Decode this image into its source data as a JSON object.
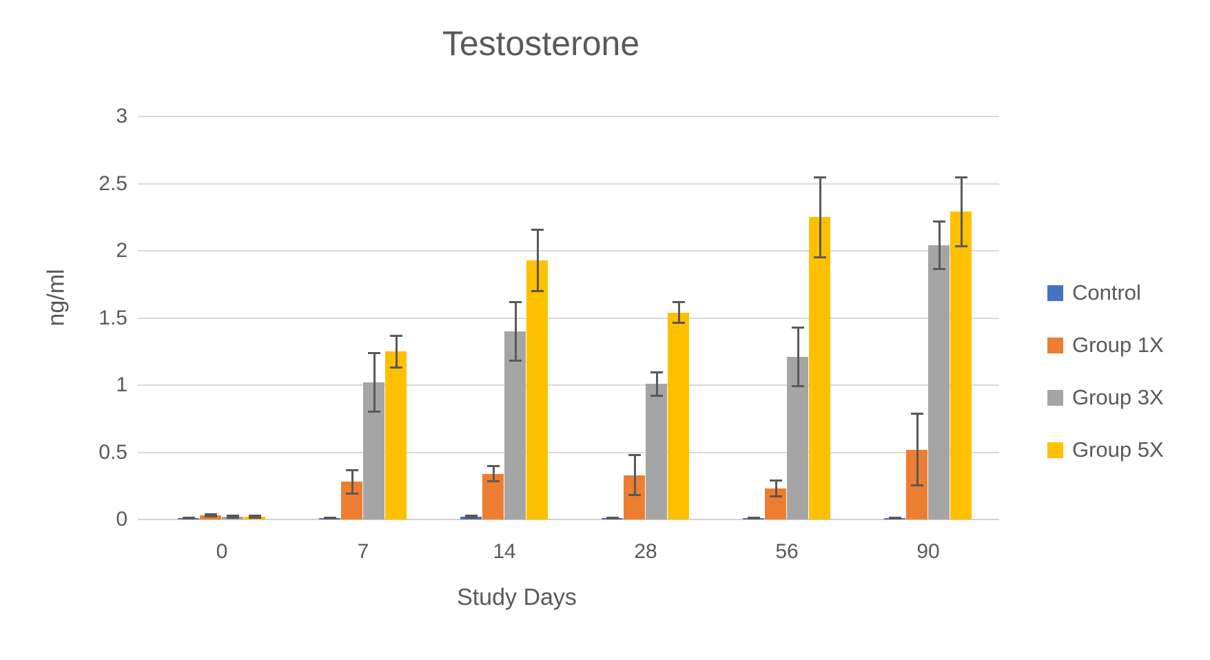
{
  "chart_data": {
    "type": "bar",
    "title": "Testosterone",
    "xlabel": "Study Days",
    "ylabel": "ng/ml",
    "categories": [
      "0",
      "7",
      "14",
      "28",
      "56",
      "90"
    ],
    "ylim": [
      0,
      3
    ],
    "yticks": [
      0,
      0.5,
      1,
      1.5,
      2,
      2.5,
      3
    ],
    "ytick_labels": [
      "0",
      "0.5",
      "1",
      "1.5",
      "2",
      "2.5",
      "3"
    ],
    "grid": true,
    "error_bars": true,
    "legend_position": "right",
    "series": [
      {
        "name": "Control",
        "color": "#4472C4",
        "values": [
          0.01,
          0.01,
          0.02,
          0.01,
          0.01,
          0.01
        ],
        "errors": [
          0.005,
          0.005,
          0.01,
          0.005,
          0.005,
          0.005
        ]
      },
      {
        "name": "Group 1X",
        "color": "#ED7D31",
        "values": [
          0.03,
          0.28,
          0.34,
          0.33,
          0.23,
          0.52
        ],
        "errors": [
          0.01,
          0.09,
          0.06,
          0.15,
          0.06,
          0.27
        ]
      },
      {
        "name": "Group 3X",
        "color": "#A5A5A5",
        "values": [
          0.02,
          1.02,
          1.4,
          1.01,
          1.21,
          2.04
        ],
        "errors": [
          0.01,
          0.22,
          0.22,
          0.09,
          0.22,
          0.18
        ]
      },
      {
        "name": "Group 5X",
        "color": "#FFC000",
        "values": [
          0.02,
          1.25,
          1.93,
          1.54,
          2.25,
          2.29
        ],
        "errors": [
          0.01,
          0.12,
          0.23,
          0.08,
          0.3,
          0.26
        ]
      }
    ],
    "styles": {
      "text_color": "#595959",
      "gridline_color": "#DADADA",
      "error_bar_color": "#595959"
    }
  }
}
